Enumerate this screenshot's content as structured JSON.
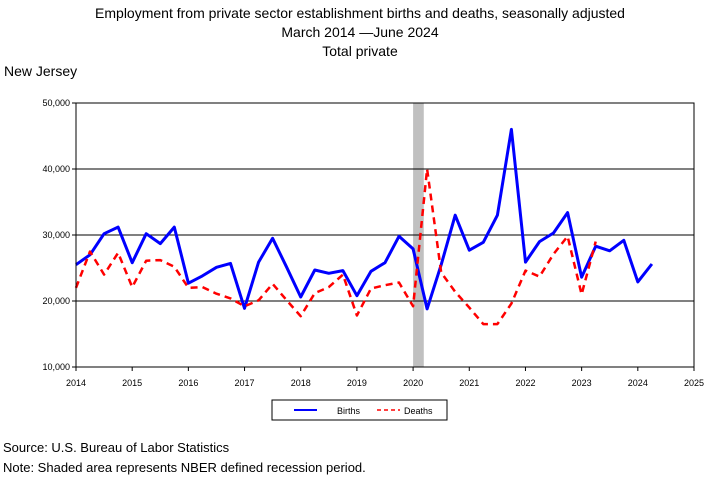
{
  "chart_data": {
    "type": "line",
    "title": "Employment from private sector establishment births and deaths, seasonally adjusted",
    "subtitle_line2": "March 2014 —June 2024",
    "subtitle_line3": "Total private",
    "region_label": "New Jersey",
    "xlabel": "",
    "ylabel": "",
    "xlim": [
      2014,
      2025
    ],
    "ylim": [
      10000,
      50000
    ],
    "x_ticks": [
      "2014",
      "2015",
      "2016",
      "2017",
      "2018",
      "2019",
      "2020",
      "2021",
      "2022",
      "2023",
      "2024",
      "2025"
    ],
    "y_ticks": [
      "10,000",
      "20,000",
      "30,000",
      "40,000",
      "50,000"
    ],
    "grid": "horizontal",
    "legend_position": "bottom",
    "recession_band": [
      2020.0,
      2020.19
    ],
    "recession_color": "#c0c0c0",
    "series": [
      {
        "name": "Births",
        "color": "#0000ff",
        "style": "solid",
        "x": [
          2014.0,
          2014.25,
          2014.5,
          2014.75,
          2015.0,
          2015.25,
          2015.5,
          2015.75,
          2016.0,
          2016.25,
          2016.5,
          2016.75,
          2017.0,
          2017.25,
          2017.5,
          2017.75,
          2018.0,
          2018.25,
          2018.5,
          2018.75,
          2019.0,
          2019.25,
          2019.5,
          2019.75,
          2020.0,
          2020.25,
          2020.5,
          2020.75,
          2021.0,
          2021.25,
          2021.5,
          2021.75,
          2022.0,
          2022.25,
          2022.5,
          2022.75,
          2023.0,
          2023.25,
          2023.5,
          2023.75,
          2024.0,
          2024.25
        ],
        "values": [
          25500,
          27000,
          30200,
          31200,
          25800,
          30200,
          28700,
          31200,
          22700,
          23800,
          25100,
          25700,
          18900,
          25900,
          29500,
          25100,
          20600,
          24700,
          24200,
          24600,
          20800,
          24500,
          25800,
          29800,
          27900,
          18800,
          25500,
          33000,
          27700,
          28900,
          33000,
          46000,
          25900,
          29000,
          30300,
          33400,
          23600,
          28300,
          27600,
          29200,
          22900,
          25600
        ]
      },
      {
        "name": "Deaths",
        "color": "#ff0000",
        "style": "dashed",
        "x": [
          2014.0,
          2014.25,
          2014.5,
          2014.75,
          2015.0,
          2015.25,
          2015.5,
          2015.75,
          2016.0,
          2016.25,
          2016.5,
          2016.75,
          2017.0,
          2017.25,
          2017.5,
          2017.75,
          2018.0,
          2018.25,
          2018.5,
          2018.75,
          2019.0,
          2019.25,
          2019.5,
          2019.75,
          2020.0,
          2020.25,
          2020.5,
          2020.75,
          2021.0,
          2021.25,
          2021.5,
          2021.75,
          2022.0,
          2022.25,
          2022.5,
          2022.75,
          2023.0,
          2023.25
        ],
        "values": [
          22000,
          27500,
          24000,
          27300,
          22100,
          26100,
          26200,
          25200,
          22000,
          22100,
          21100,
          20400,
          19200,
          20100,
          22600,
          20100,
          17700,
          21200,
          22100,
          24000,
          17800,
          21900,
          22400,
          22800,
          19200,
          40000,
          24300,
          21400,
          19000,
          16500,
          16500,
          19600,
          24600,
          23700,
          27100,
          29800,
          21000,
          29000
        ]
      }
    ]
  },
  "footer": {
    "source": "Source: U.S. Bureau of Labor Statistics",
    "note": "Note: Shaded area represents NBER defined recession period."
  }
}
